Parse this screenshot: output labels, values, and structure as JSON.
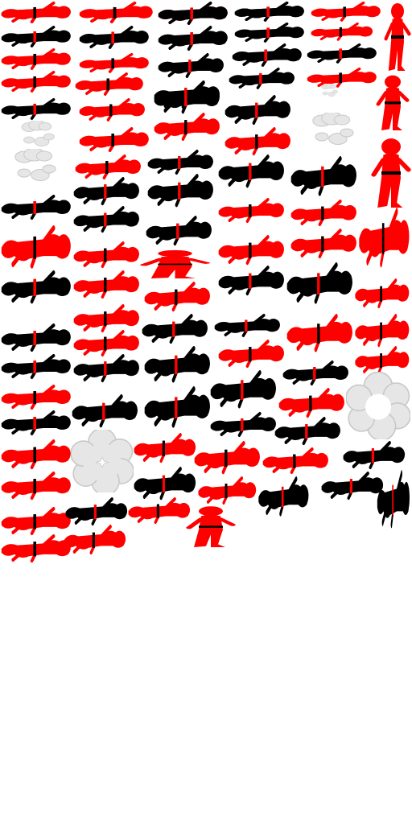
{
  "sheet": {
    "background": "#ffffff",
    "palette": {
      "red": "#ff0000",
      "black": "#000000",
      "belt_on_red": "#000000",
      "belt_on_black": "#ff0000",
      "smoke": "#e6e6e6",
      "smoke_outline": "#c8c8c8"
    },
    "sprite_icon": "ninja-silhouette-icon",
    "effect_icons": [
      "smoke-puff-icon",
      "smoke-ring-icon"
    ]
  },
  "sprites": [
    {
      "color": "black",
      "pose": "lying"
    },
    {
      "color": "red",
      "pose": "lying"
    },
    {
      "color": "red",
      "pose": "lying"
    },
    {
      "color": "black",
      "pose": "lying"
    },
    {
      "color": "red",
      "pose": "lying"
    },
    {
      "color": "red",
      "pose": "standing"
    },
    {
      "color": "black",
      "pose": "lying"
    },
    {
      "color": "black",
      "pose": "lying"
    },
    {
      "color": "black",
      "pose": "lying"
    },
    {
      "color": "black",
      "pose": "lying"
    },
    {
      "color": "red",
      "pose": "lying"
    },
    {
      "color": "red",
      "pose": "lying"
    },
    {
      "color": "red",
      "pose": "lying"
    },
    {
      "color": "black",
      "pose": "lying"
    },
    {
      "color": "black",
      "pose": "lying"
    },
    {
      "color": "black",
      "pose": "lying"
    },
    {
      "color": "red",
      "pose": "lying"
    },
    {
      "color": "red",
      "pose": "lying"
    },
    {
      "color": "black",
      "pose": "lying"
    },
    {
      "color": "black",
      "pose": "lying"
    },
    {
      "color": "red",
      "pose": "lying"
    },
    {
      "color": "black",
      "pose": "lying"
    },
    {
      "color": "red",
      "pose": "lying"
    },
    {
      "color": "black",
      "pose": "lying"
    },
    {
      "color": "black",
      "pose": "lying"
    },
    {
      "color": "red",
      "pose": "standing"
    },
    {
      "color": "red",
      "pose": "lying"
    },
    {
      "color": "red",
      "pose": "lying"
    },
    {
      "color": "red",
      "pose": "lying"
    },
    {
      "color": "black",
      "pose": "lying"
    },
    {
      "color": "black",
      "pose": "lying"
    },
    {
      "color": "black",
      "pose": "lying"
    },
    {
      "color": "red",
      "pose": "standing"
    },
    {
      "color": "red",
      "pose": "lying"
    },
    {
      "color": "black",
      "pose": "lying"
    },
    {
      "color": "black",
      "pose": "lying"
    },
    {
      "color": "black",
      "pose": "lying"
    },
    {
      "color": "black",
      "pose": "lying"
    },
    {
      "color": "red",
      "pose": "lying"
    },
    {
      "color": "red",
      "pose": "lying"
    },
    {
      "color": "red",
      "pose": "lying"
    },
    {
      "color": "black",
      "pose": "lying"
    },
    {
      "color": "red",
      "pose": "lying"
    },
    {
      "color": "red",
      "pose": "lying"
    },
    {
      "color": "red",
      "pose": "lying"
    },
    {
      "color": "red",
      "pose": "lying"
    },
    {
      "color": "red",
      "pose": "standing"
    },
    {
      "color": "black",
      "pose": "lying"
    },
    {
      "color": "black",
      "pose": "lying"
    },
    {
      "color": "black",
      "pose": "lying"
    },
    {
      "color": "red",
      "pose": "lying"
    },
    {
      "color": "red",
      "pose": "lying"
    },
    {
      "color": "red",
      "pose": "lying"
    },
    {
      "color": "red",
      "pose": "lying"
    },
    {
      "color": "black",
      "pose": "lying"
    },
    {
      "color": "black",
      "pose": "lying"
    },
    {
      "color": "red",
      "pose": "lying"
    },
    {
      "color": "red",
      "pose": "lying"
    },
    {
      "color": "black",
      "pose": "lying"
    },
    {
      "color": "red",
      "pose": "lying"
    },
    {
      "color": "black",
      "pose": "lying"
    },
    {
      "color": "red",
      "pose": "lying"
    },
    {
      "color": "red",
      "pose": "lying"
    },
    {
      "color": "black",
      "pose": "lying"
    },
    {
      "color": "black",
      "pose": "lying"
    },
    {
      "color": "black",
      "pose": "lying"
    },
    {
      "color": "black",
      "pose": "lying"
    },
    {
      "color": "black",
      "pose": "lying"
    },
    {
      "color": "red",
      "pose": "lying"
    },
    {
      "color": "black",
      "pose": "lying"
    },
    {
      "color": "black",
      "pose": "lying"
    },
    {
      "color": "red",
      "pose": "lying"
    },
    {
      "color": "black",
      "pose": "lying"
    },
    {
      "color": "black",
      "pose": "lying"
    },
    {
      "color": "red",
      "pose": "lying"
    },
    {
      "color": "red",
      "pose": "lying"
    },
    {
      "color": "red",
      "pose": "lying"
    },
    {
      "color": "red",
      "pose": "lying"
    },
    {
      "color": "black",
      "pose": "lying"
    },
    {
      "color": "red",
      "pose": "lying"
    },
    {
      "color": "black",
      "pose": "lying"
    },
    {
      "color": "red",
      "pose": "lying"
    },
    {
      "color": "black",
      "pose": "lying"
    },
    {
      "color": "black",
      "pose": "lying"
    },
    {
      "color": "black",
      "pose": "lying"
    },
    {
      "color": "red",
      "pose": "lying"
    },
    {
      "color": "black",
      "pose": "lying"
    },
    {
      "color": "red",
      "pose": "lying"
    },
    {
      "color": "red",
      "pose": "standing"
    },
    {
      "color": "red",
      "pose": "lying"
    },
    {
      "color": "red",
      "pose": "lying"
    },
    {
      "color": "red",
      "pose": "lying"
    },
    {
      "color": "red",
      "pose": "lying"
    },
    {
      "color": "black",
      "pose": "lying"
    },
    {
      "color": "black",
      "pose": "lying"
    }
  ]
}
